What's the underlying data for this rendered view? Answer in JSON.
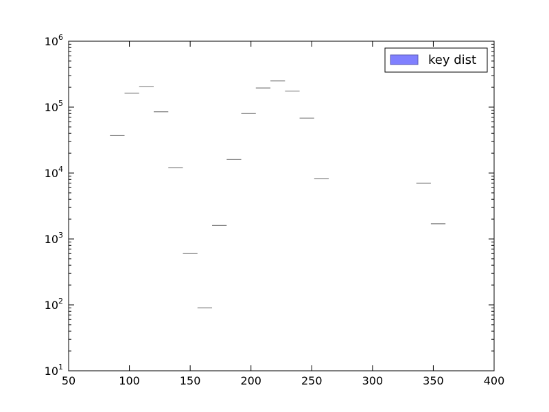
{
  "chart_data": {
    "type": "bar",
    "title": "",
    "xlabel": "",
    "ylabel": "",
    "xlim": [
      50,
      400
    ],
    "ylim": [
      10,
      1000000
    ],
    "yscale": "log",
    "grid": false,
    "legend": {
      "placement": "top-right",
      "entries": [
        "key dist"
      ]
    },
    "x_ticks": [
      "50",
      "100",
      "150",
      "200",
      "250",
      "300",
      "350",
      "400"
    ],
    "y_ticks": [
      {
        "base": "10",
        "exp": "1"
      },
      {
        "base": "10",
        "exp": "2"
      },
      {
        "base": "10",
        "exp": "3"
      },
      {
        "base": "10",
        "exp": "4"
      },
      {
        "base": "10",
        "exp": "5"
      },
      {
        "base": "10",
        "exp": "6"
      }
    ],
    "bar_width": 12,
    "series": [
      {
        "name": "key dist",
        "color": "#8080ff",
        "edge_color": "#7f7f7f",
        "x": [
          84,
          96,
          108,
          120,
          132,
          144,
          156,
          168,
          180,
          192,
          204,
          216,
          228,
          240,
          252,
          336,
          348
        ],
        "values": [
          37000,
          163000,
          205000,
          85000,
          12000,
          600,
          90,
          1600,
          16000,
          80000,
          195000,
          250000,
          175000,
          68000,
          8200,
          7000,
          1700
        ]
      }
    ]
  }
}
